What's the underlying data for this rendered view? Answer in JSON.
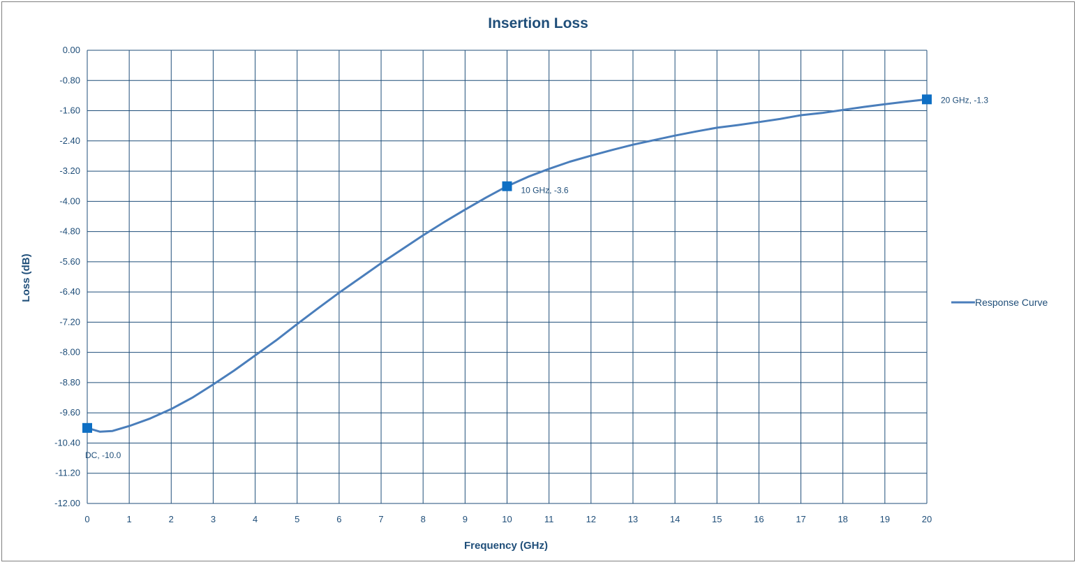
{
  "chart_data": {
    "type": "line",
    "title": "Insertion Loss",
    "xlabel": "Frequency (GHz)",
    "ylabel": "Loss (dB)",
    "xlim": [
      0,
      20
    ],
    "ylim": [
      -12.0,
      0.0
    ],
    "x_ticks": [
      "0",
      "1",
      "2",
      "3",
      "4",
      "5",
      "6",
      "7",
      "8",
      "9",
      "10",
      "11",
      "12",
      "13",
      "14",
      "15",
      "16",
      "17",
      "18",
      "19",
      "20"
    ],
    "y_ticks": [
      "0.00",
      "-0.80",
      "-1.60",
      "-2.40",
      "-3.20",
      "-4.00",
      "-4.80",
      "-5.60",
      "-6.40",
      "-7.20",
      "-8.00",
      "-8.80",
      "-9.60",
      "-10.40",
      "-11.20",
      "-12.00"
    ],
    "grid": true,
    "legend_position": "right",
    "series": [
      {
        "name": "Response Curve",
        "color": "#4a7ebb",
        "x": [
          0,
          0.3,
          0.6,
          1,
          1.5,
          2,
          2.5,
          3,
          3.5,
          4,
          4.5,
          5,
          5.5,
          6,
          6.5,
          7,
          7.5,
          8,
          8.5,
          9,
          9.5,
          10,
          10.5,
          11,
          11.5,
          12,
          12.5,
          13,
          13.5,
          14,
          14.5,
          15,
          15.5,
          16,
          16.5,
          17,
          17.5,
          18,
          18.5,
          19,
          19.5,
          20
        ],
        "y": [
          -10.0,
          -10.1,
          -10.08,
          -9.95,
          -9.75,
          -9.5,
          -9.2,
          -8.85,
          -8.48,
          -8.08,
          -7.68,
          -7.25,
          -6.83,
          -6.42,
          -6.03,
          -5.64,
          -5.27,
          -4.9,
          -4.55,
          -4.22,
          -3.9,
          -3.6,
          -3.35,
          -3.14,
          -2.95,
          -2.79,
          -2.64,
          -2.5,
          -2.38,
          -2.26,
          -2.15,
          -2.05,
          -1.98,
          -1.9,
          -1.82,
          -1.72,
          -1.66,
          -1.58,
          -1.5,
          -1.43,
          -1.36,
          -1.3
        ]
      }
    ],
    "markers": [
      {
        "x": 0,
        "y": -10.0,
        "label": "DC, -10.0",
        "color": "#0e6fc4"
      },
      {
        "x": 10,
        "y": -3.6,
        "label": "10 GHz, -3.6",
        "color": "#0e6fc4"
      },
      {
        "x": 20,
        "y": -1.3,
        "label": "20 GHz, -1.3",
        "color": "#0e6fc4"
      }
    ]
  }
}
